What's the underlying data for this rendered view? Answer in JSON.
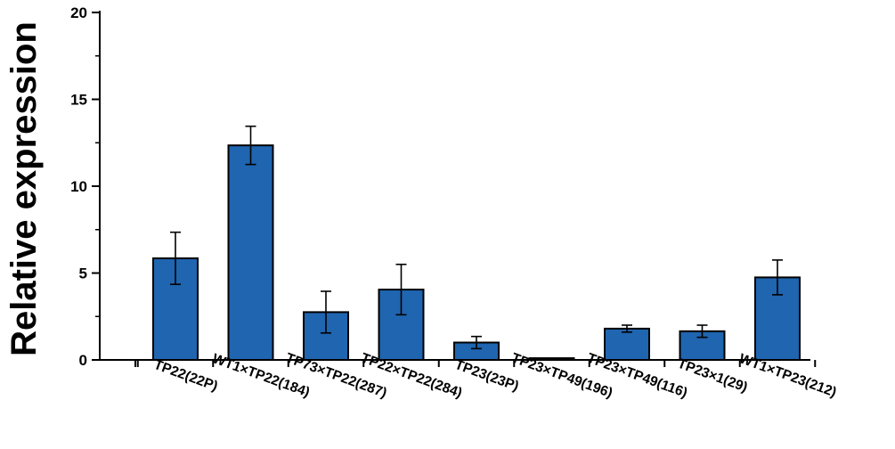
{
  "chart_data": {
    "type": "bar",
    "title": "",
    "xlabel": "",
    "ylabel": "Relative expression",
    "ylim": [
      0,
      20
    ],
    "yticks": [
      "0",
      "5",
      "10",
      "15",
      "20"
    ],
    "grid": false,
    "bar_color": "#1f65b0",
    "categories": [
      "TP22(22P)",
      "WT1×TP22(184)",
      "TP73×TP22(287)",
      "TP22×TP22(284)",
      "TP23(23P)",
      "TP23×TP49(196)",
      "TP23×TP49(116)",
      "TP23×1(29)",
      "WT1×TP23(212)"
    ],
    "values": [
      5.85,
      12.35,
      2.75,
      4.05,
      1.0,
      0.1,
      1.8,
      1.65,
      4.75
    ],
    "errors": [
      1.5,
      1.1,
      1.2,
      1.45,
      0.35,
      0.0,
      0.2,
      0.35,
      1.0
    ]
  }
}
